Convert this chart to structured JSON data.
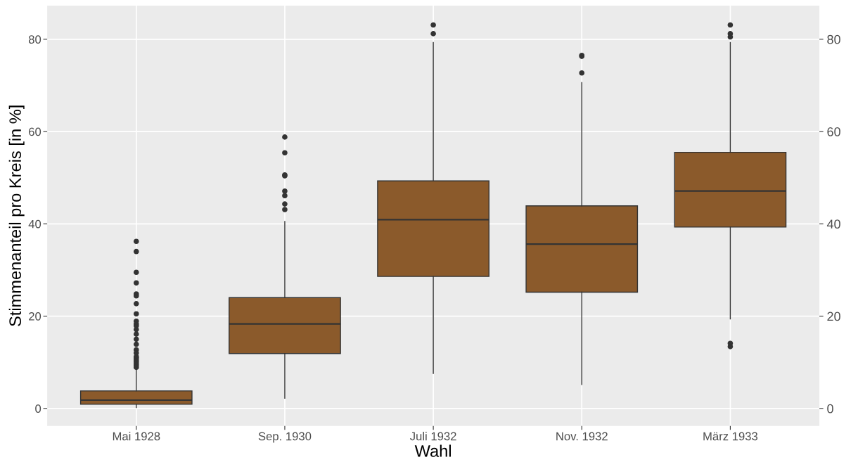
{
  "chart_data": {
    "type": "box",
    "xlabel": "Wahl",
    "ylabel": "Stimmenanteil pro Kreis [in %]",
    "categories": [
      "Mai 1928",
      "Sep. 1930",
      "Juli 1932",
      "Nov. 1932",
      "März 1933"
    ],
    "series": [
      {
        "color": "#8b5a2b",
        "boxes": [
          {
            "low": 0.2,
            "q1": 0.9,
            "median": 1.8,
            "q3": 3.8,
            "high": 8.4,
            "outliers": [
              36.2,
              34.0,
              29.5,
              27.2,
              24.8,
              24.4,
              22.7,
              20.5,
              18.9,
              18.3,
              17.9,
              17.1,
              16.1,
              15.0,
              13.9,
              12.7,
              12.0,
              11.2,
              10.9,
              10.5,
              10.1,
              9.7,
              9.3,
              8.9
            ]
          },
          {
            "low": 2.2,
            "q1": 11.9,
            "median": 18.3,
            "q3": 24.0,
            "high": 40.5,
            "outliers": [
              58.8,
              55.4,
              50.6,
              50.4,
              47.1,
              46.1,
              44.3,
              43.1
            ]
          },
          {
            "low": 7.6,
            "q1": 28.6,
            "median": 40.9,
            "q3": 49.3,
            "high": 79.3,
            "outliers": [
              83.1,
              81.2
            ]
          },
          {
            "low": 5.2,
            "q1": 25.2,
            "median": 35.6,
            "q3": 43.9,
            "high": 70.6,
            "outliers": [
              76.5,
              76.3,
              72.7
            ]
          },
          {
            "low": 19.4,
            "q1": 39.3,
            "median": 47.1,
            "q3": 55.5,
            "high": 79.3,
            "outliers": [
              83.1,
              81.2,
              80.5,
              14.1,
              13.4
            ]
          }
        ]
      }
    ],
    "ylim": [
      -3.8,
      87.3
    ],
    "yticks": [
      0,
      20,
      40,
      60,
      80
    ],
    "y2lim": [
      -3.8,
      87.3
    ],
    "y2ticks": [
      0,
      20,
      40,
      60,
      80
    ],
    "grid": true
  }
}
